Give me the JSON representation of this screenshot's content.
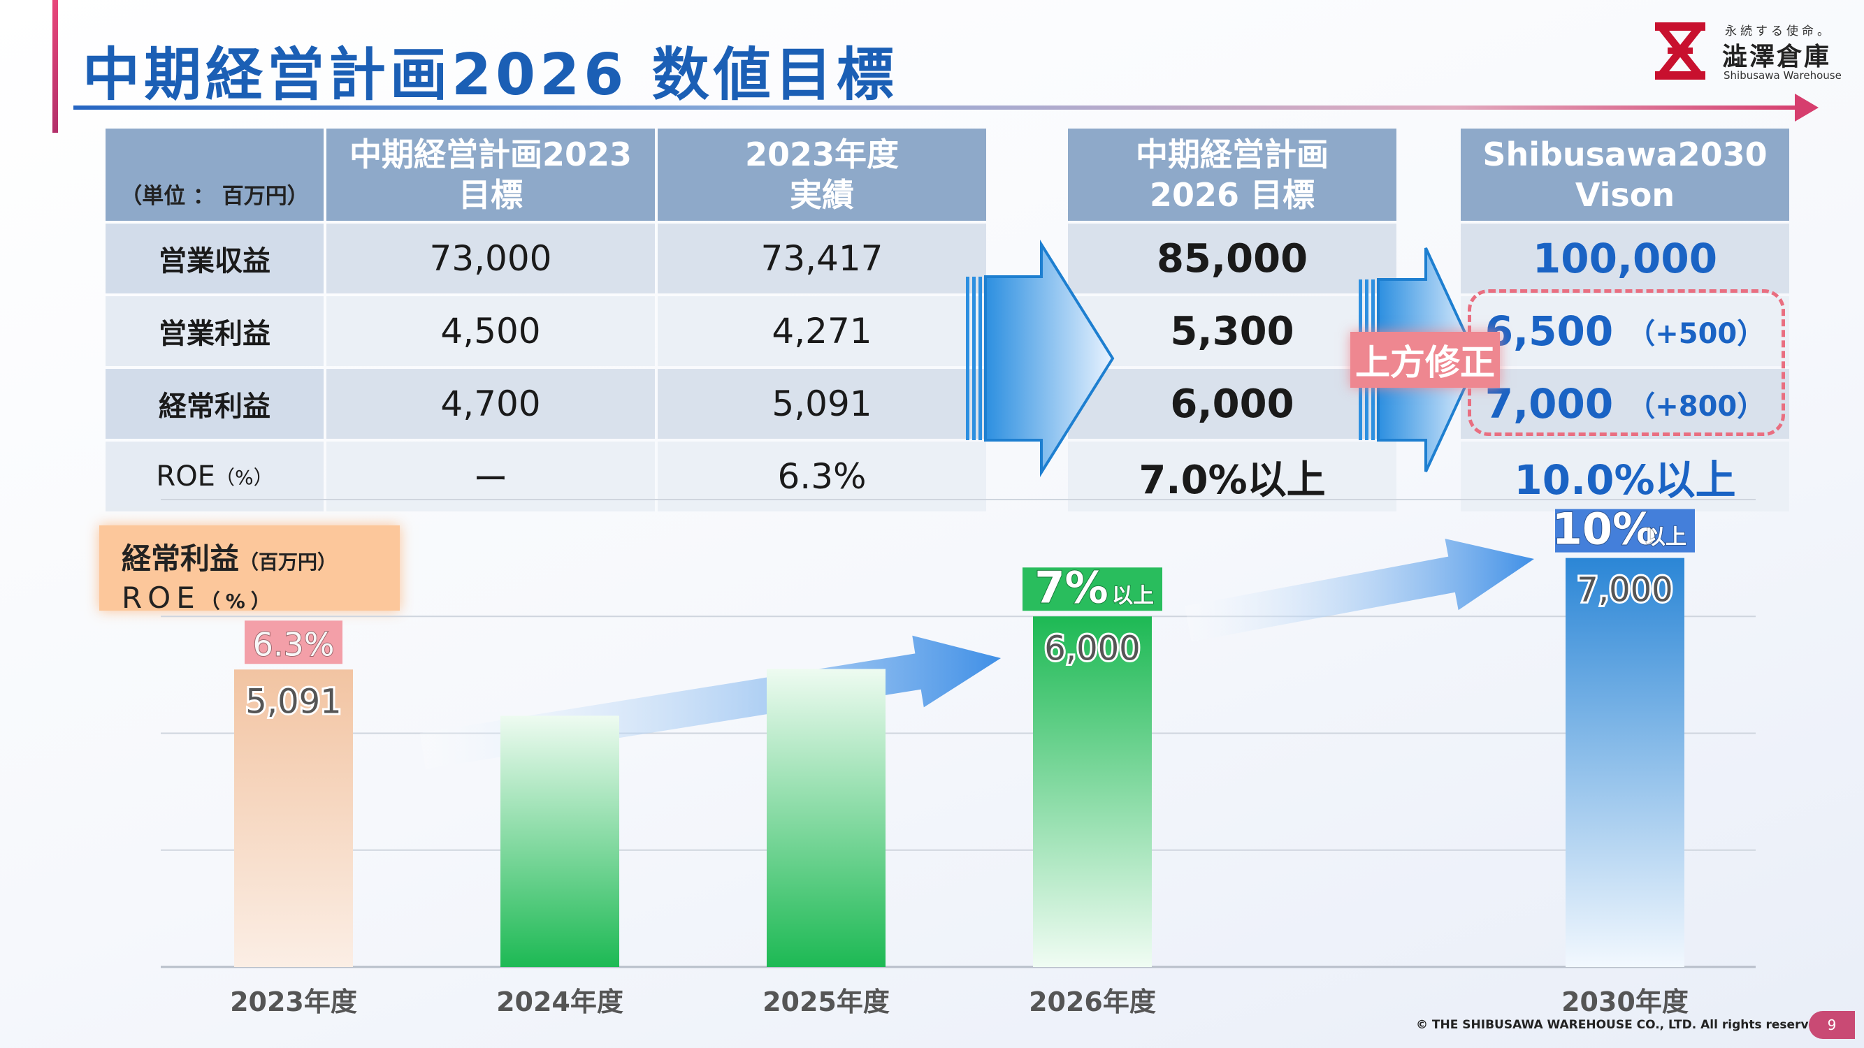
{
  "header": {
    "title": "中期経営計画2026 数値目標"
  },
  "logo": {
    "tagline": "永続する使命。",
    "name": "澁澤倉庫",
    "name_en": "Shibusawa Warehouse"
  },
  "table": {
    "unit_label": "（単位 ： 百万円）",
    "columns": [
      {
        "line1": "中期経営計画2023",
        "line2": "目標"
      },
      {
        "line1": "2023年度",
        "line2": "実績"
      },
      {
        "line1": "中期経営計画",
        "line2": "2026 目標"
      },
      {
        "line1": "Shibusawa2030",
        "line2": "Vison"
      }
    ],
    "rows": [
      {
        "label": "営業収益",
        "plan2023": "73,000",
        "actual2023": "73,417",
        "target2026": "85,000",
        "vision2030": "100,000",
        "delta": ""
      },
      {
        "label": "営業利益",
        "plan2023": "4,500",
        "actual2023": "4,271",
        "target2026": "5,300",
        "vision2030": "6,500",
        "delta": "（+500）"
      },
      {
        "label": "経常利益",
        "plan2023": "4,700",
        "actual2023": "5,091",
        "target2026": "6,000",
        "vision2030": "7,000",
        "delta": "（+800）"
      },
      {
        "label": "ROE",
        "label_unit": "（%）",
        "plan2023": "ー",
        "actual2023": "6.3%",
        "target2026": "7.0%以上",
        "vision2030": "10.0%以上",
        "delta": ""
      }
    ],
    "revision_label": "上方修正"
  },
  "legend": {
    "line1": "経常利益",
    "line1_unit": "（百万円）",
    "line2": "ROE",
    "line2_unit": "（%）"
  },
  "chart_data": {
    "type": "bar",
    "categories": [
      "2023年度",
      "2024年度",
      "2025年度",
      "2026年度",
      "2030年度"
    ],
    "series": [
      {
        "name": "経常利益",
        "values": [
          5091,
          4300,
          5100,
          6000,
          7000
        ]
      },
      {
        "name": "ROE",
        "values": [
          6.3,
          null,
          null,
          7,
          10
        ]
      }
    ],
    "value_labels": [
      "5,091",
      "",
      "",
      "6,000",
      "7,000"
    ],
    "roe_labels": [
      {
        "index": 0,
        "text": "6.3%",
        "suffix": ""
      },
      {
        "index": 3,
        "text": "7%",
        "suffix": "以上"
      },
      {
        "index": 4,
        "text": "10%",
        "suffix": "以上"
      }
    ],
    "ylim": [
      0,
      8000
    ],
    "grid": true,
    "colors": {
      "bar2023": "#f2c4a2",
      "bar_green": "#1db954",
      "bar_blue": "#2b86d6",
      "roe2023": "#f29aa3",
      "roe2026": "#1db954",
      "roe2030": "#3a78d8",
      "arrow": "#3f8fe6"
    }
  },
  "footer": {
    "copyright": "© THE SHIBUSAWA WAREHOUSE CO., LTD. All rights reserved.",
    "page": "9"
  }
}
